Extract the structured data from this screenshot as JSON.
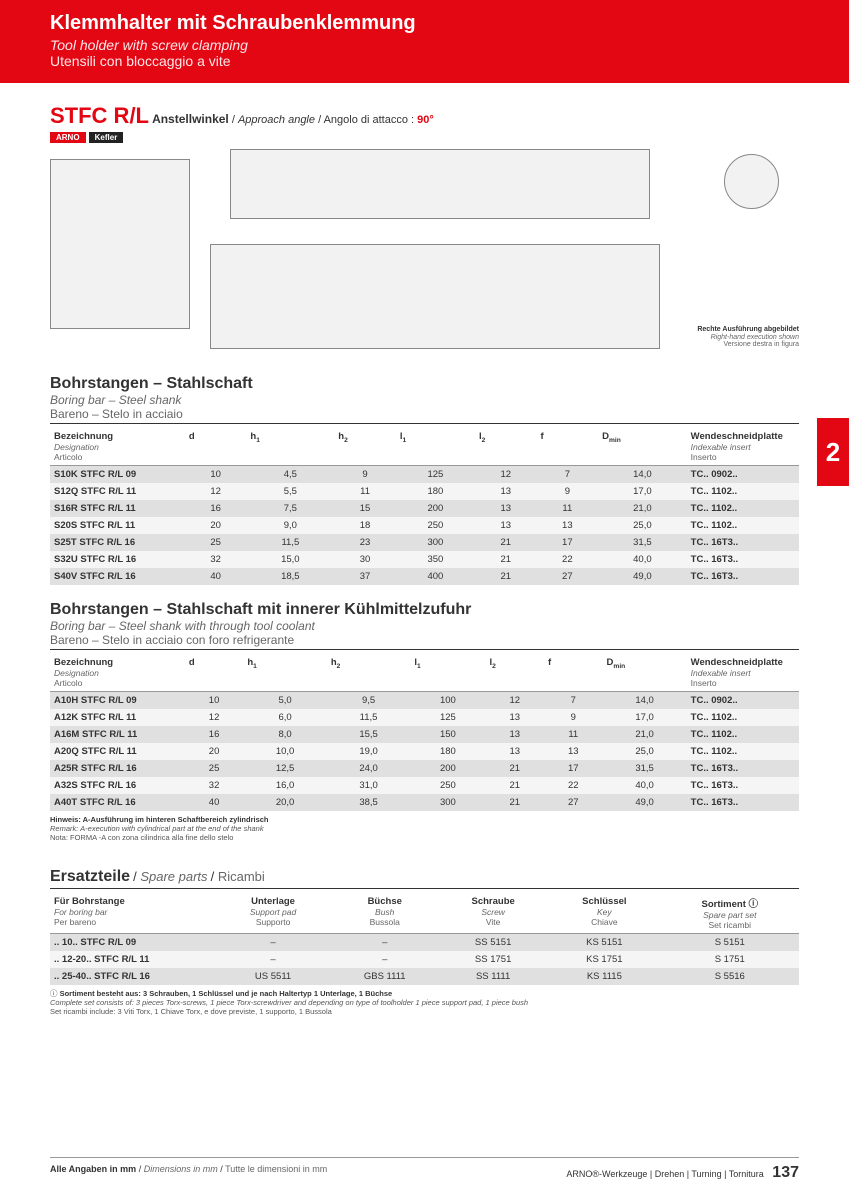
{
  "banner": {
    "title_de": "Klemmhalter mit Schraubenklemmung",
    "title_en": "Tool holder with screw clamping",
    "title_it": "Utensili con bloccaggio a vite"
  },
  "product": {
    "code": "STFC R/L",
    "approach_de": "Anstellwinkel",
    "approach_en": "Approach angle",
    "approach_it": "Angolo di attacco",
    "approach_value": "90°",
    "brand1": "ARNO",
    "brand2": "Kefler"
  },
  "diagram_note": {
    "de": "Rechte Ausführung abgebildet",
    "en": "Right-hand execution shown",
    "it": "Versione destra in figura"
  },
  "side_tab": "2",
  "section1": {
    "title_de": "Bohrstangen – Stahlschaft",
    "title_en": "Boring bar – Steel shank",
    "title_it": "Bareno – Stelo in acciaio",
    "headers": {
      "designation_de": "Bezeichnung",
      "designation_en": "Designation",
      "designation_it": "Articolo",
      "d": "d",
      "h1": "h₁",
      "h2": "h₂",
      "l1": "l₁",
      "l2": "l₂",
      "f": "f",
      "dmin": "Dₘᵢₙ",
      "insert_de": "Wendeschneidplatte",
      "insert_en": "Indexable insert",
      "insert_it": "Inserto"
    },
    "rows": [
      {
        "name": "S10K STFC R/L 09",
        "d": "10",
        "h1": "4,5",
        "h2": "9",
        "l1": "125",
        "l2": "12",
        "f": "7",
        "dmin": "14,0",
        "insert": "TC.. 0902.."
      },
      {
        "name": "S12Q STFC R/L 11",
        "d": "12",
        "h1": "5,5",
        "h2": "11",
        "l1": "180",
        "l2": "13",
        "f": "9",
        "dmin": "17,0",
        "insert": "TC.. 1102.."
      },
      {
        "name": "S16R STFC R/L 11",
        "d": "16",
        "h1": "7,5",
        "h2": "15",
        "l1": "200",
        "l2": "13",
        "f": "11",
        "dmin": "21,0",
        "insert": "TC.. 1102.."
      },
      {
        "name": "S20S STFC R/L 11",
        "d": "20",
        "h1": "9,0",
        "h2": "18",
        "l1": "250",
        "l2": "13",
        "f": "13",
        "dmin": "25,0",
        "insert": "TC.. 1102.."
      },
      {
        "name": "S25T STFC R/L 16",
        "d": "25",
        "h1": "11,5",
        "h2": "23",
        "l1": "300",
        "l2": "21",
        "f": "17",
        "dmin": "31,5",
        "insert": "TC.. 16T3.."
      },
      {
        "name": "S32U STFC R/L 16",
        "d": "32",
        "h1": "15,0",
        "h2": "30",
        "l1": "350",
        "l2": "21",
        "f": "22",
        "dmin": "40,0",
        "insert": "TC.. 16T3.."
      },
      {
        "name": "S40V STFC R/L 16",
        "d": "40",
        "h1": "18,5",
        "h2": "37",
        "l1": "400",
        "l2": "21",
        "f": "27",
        "dmin": "49,0",
        "insert": "TC.. 16T3.."
      }
    ]
  },
  "section2": {
    "title_de": "Bohrstangen – Stahlschaft mit innerer Kühlmittelzufuhr",
    "title_en": "Boring bar – Steel shank with through tool coolant",
    "title_it": "Bareno – Stelo in acciaio con foro refrigerante",
    "rows": [
      {
        "name": "A10H STFC R/L 09",
        "d": "10",
        "h1": "5,0",
        "h2": "9,5",
        "l1": "100",
        "l2": "12",
        "f": "7",
        "dmin": "14,0",
        "insert": "TC.. 0902.."
      },
      {
        "name": "A12K STFC R/L 11",
        "d": "12",
        "h1": "6,0",
        "h2": "11,5",
        "l1": "125",
        "l2": "13",
        "f": "9",
        "dmin": "17,0",
        "insert": "TC.. 1102.."
      },
      {
        "name": "A16M STFC R/L 11",
        "d": "16",
        "h1": "8,0",
        "h2": "15,5",
        "l1": "150",
        "l2": "13",
        "f": "11",
        "dmin": "21,0",
        "insert": "TC.. 1102.."
      },
      {
        "name": "A20Q STFC R/L 11",
        "d": "20",
        "h1": "10,0",
        "h2": "19,0",
        "l1": "180",
        "l2": "13",
        "f": "13",
        "dmin": "25,0",
        "insert": "TC.. 1102.."
      },
      {
        "name": "A25R STFC R/L 16",
        "d": "25",
        "h1": "12,5",
        "h2": "24,0",
        "l1": "200",
        "l2": "21",
        "f": "17",
        "dmin": "31,5",
        "insert": "TC.. 16T3.."
      },
      {
        "name": "A32S STFC R/L 16",
        "d": "32",
        "h1": "16,0",
        "h2": "31,0",
        "l1": "250",
        "l2": "21",
        "f": "22",
        "dmin": "40,0",
        "insert": "TC.. 16T3.."
      },
      {
        "name": "A40T STFC R/L 16",
        "d": "40",
        "h1": "20,0",
        "h2": "38,5",
        "l1": "300",
        "l2": "21",
        "f": "27",
        "dmin": "49,0",
        "insert": "TC.. 16T3.."
      }
    ]
  },
  "note2": {
    "de": "Hinweis: A-Ausführung im hinteren Schaftbereich zylindrisch",
    "en": "Remark: A-execution with cylindrical part at the end of the shank",
    "it": "Nota: FORMA -A con zona cilindrica alla fine dello stelo"
  },
  "parts": {
    "title_de": "Ersatzteile",
    "title_en": "Spare parts",
    "title_it": "Ricambi",
    "headers": {
      "for_de": "Für Bohrstange",
      "for_en": "For boring bar",
      "for_it": "Per bareno",
      "pad_de": "Unterlage",
      "pad_en": "Support pad",
      "pad_it": "Supporto",
      "bush_de": "Büchse",
      "bush_en": "Bush",
      "bush_it": "Bussola",
      "screw_de": "Schraube",
      "screw_en": "Screw",
      "screw_it": "Vite",
      "key_de": "Schlüssel",
      "key_en": "Key",
      "key_it": "Chiave",
      "set_de": "Sortiment",
      "set_en": "Spare part set",
      "set_it": "Set ricambi"
    },
    "rows": [
      {
        "for": ".. 10.. STFC R/L 09",
        "pad": "–",
        "bush": "–",
        "screw": "SS 5151",
        "key": "KS 5151",
        "set": "S 5151"
      },
      {
        "for": ".. 12-20.. STFC R/L 11",
        "pad": "–",
        "bush": "–",
        "screw": "SS 1751",
        "key": "KS 1751",
        "set": "S 1751"
      },
      {
        "for": ".. 25-40.. STFC R/L 16",
        "pad": "US 5511",
        "bush": "GBS 1111",
        "screw": "SS 1111",
        "key": "KS 1115",
        "set": "S 5516"
      }
    ]
  },
  "parts_note": {
    "de": "Sortiment besteht aus: 3 Schrauben, 1 Schlüssel und je nach Haltertyp 1 Unterlage, 1 Büchse",
    "en": "Complete set consists of: 3 pieces Torx-screws, 1 piece Torx-screwdriver and depending on type of toolholder 1 piece support pad, 1 piece bush",
    "it": "Set ricambi include: 3 Viti Torx, 1 Chiave Torx, e dove previste, 1 supporto, 1 Bussola"
  },
  "footer": {
    "dim_de": "Alle Angaben in mm",
    "dim_en": "Dimensions in mm",
    "dim_it": "Tutte le dimensioni in mm",
    "brand_line": "ARNO®-Werkzeuge | Drehen | Turning | Tornitura",
    "page": "137"
  },
  "info_glyph": "ⓘ"
}
